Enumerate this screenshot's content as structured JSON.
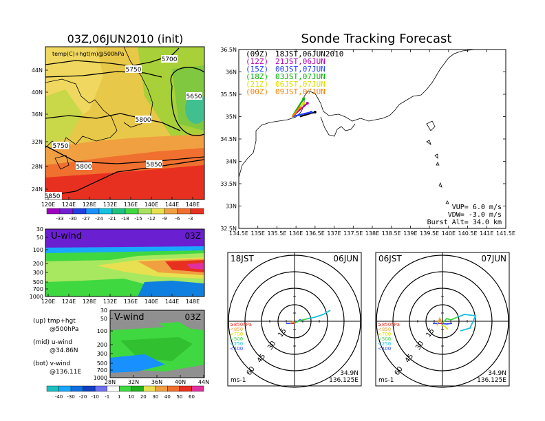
{
  "left_title": "03Z,06JUN2010 (init)",
  "right_title": "Sonde Tracking Forecast",
  "map_top": {
    "label": "temp(C)+hgt(m)@500hPa",
    "lat_ticks": [
      "44N",
      "40N",
      "36N",
      "32N",
      "28N",
      "24N"
    ],
    "lon_ticks": [
      "120E",
      "124E",
      "128E",
      "132E",
      "136E",
      "140E",
      "144E",
      "148E"
    ],
    "contours": [
      "5700",
      "5750",
      "5650",
      "5800",
      "5750",
      "5800",
      "5850",
      "5850"
    ],
    "colorbar": [
      "-33",
      "-30",
      "-27",
      "-24",
      "-21",
      "-18",
      "-15",
      "-12",
      "-9",
      "-6",
      "-3"
    ]
  },
  "u_wind": {
    "label": "U-wind",
    "time": "03Z",
    "p_ticks": [
      "30",
      "50",
      "100",
      "200",
      "300",
      "500",
      "700",
      "1000"
    ],
    "lon_ticks": [
      "120E",
      "124E",
      "128E",
      "132E",
      "136E",
      "140E",
      "144E",
      "148E"
    ]
  },
  "v_wind": {
    "label": "V-wind",
    "time": "03Z",
    "p_ticks": [
      "30",
      "50",
      "100",
      "200",
      "300",
      "500",
      "700",
      "1000"
    ],
    "lat_ticks": [
      "28N",
      "32N",
      "36N",
      "40N",
      "44N"
    ],
    "colorbar": [
      "-40",
      "-30",
      "-20",
      "-10",
      "-1",
      "1",
      "10",
      "20",
      "30",
      "40",
      "50",
      "60"
    ]
  },
  "legend_notes": [
    {
      "top": "(up) tmp+hgt",
      "bottom": "@500hPa"
    },
    {
      "top": "(mid) u-wind",
      "bottom": "@34.86N"
    },
    {
      "top": "(bot) v-wind",
      "bottom": "@136.11E"
    }
  ],
  "track_map": {
    "lat_ticks": [
      "36.5N",
      "36N",
      "35.5N",
      "35N",
      "34.5N",
      "34N",
      "33.5N",
      "33N",
      "32.5N"
    ],
    "lon_ticks": [
      "134.5E",
      "135E",
      "135.5E",
      "136E",
      "136.5E",
      "137E",
      "137.5E",
      "138E",
      "138.5E",
      "139E",
      "139.5E",
      "140E",
      "140.5E",
      "141E",
      "141.5E"
    ],
    "legend": [
      {
        "key": "(09Z)",
        "text": "18JST,06JUN2010",
        "color": "#000000"
      },
      {
        "key": "(12Z)",
        "text": "21JST,06JUN",
        "color": "#b000b0"
      },
      {
        "key": "(15Z)",
        "text": "00JST,07JUN",
        "color": "#2040ff"
      },
      {
        "key": "(18Z)",
        "text": "03JST,07JUN",
        "color": "#00b000"
      },
      {
        "key": "(21Z)",
        "text": "06JST,07JUN",
        "color": "#e0e000"
      },
      {
        "key": "(00Z)",
        "text": "09JST,07JUN",
        "color": "#ff8000"
      }
    ],
    "vup": "VUP= 6.0 m/s",
    "vdw": "VDW= -3.0 m/s",
    "burst": "Burst Alt= 34.0 km"
  },
  "hodo_left": {
    "time": "18JST",
    "date": "06JUN",
    "rings": [
      "15",
      "30",
      "45",
      "60"
    ],
    "levels": [
      "≥850hPa",
      "<850",
      "<700",
      "<500",
      "<250",
      "<100"
    ],
    "unit": "ms-1",
    "lat": "34.9N",
    "lon": "136.125E"
  },
  "hodo_right": {
    "time": "06JST",
    "date": "07JUN",
    "rings": [
      "15",
      "30",
      "45",
      "60"
    ],
    "levels": [
      "≥850hPa",
      "<850",
      "<700",
      "<500",
      "<250",
      "<100"
    ],
    "unit": "ms-1",
    "lat": "34.9N",
    "lon": "136.125E"
  },
  "chart_data": [
    {
      "type": "heatmap",
      "title": "03Z,06JUN2010 (init)",
      "variable": "temp(C)+hgt(m)@500hPa",
      "x_ticks": [
        "120E",
        "124E",
        "128E",
        "132E",
        "136E",
        "140E",
        "144E",
        "148E"
      ],
      "y_ticks": [
        "24N",
        "28N",
        "32N",
        "36N",
        "40N",
        "44N"
      ],
      "color_levels": [
        -33,
        -30,
        -27,
        -24,
        -21,
        -18,
        -15,
        -12,
        -9,
        -6,
        -3
      ],
      "contour_labels": [
        5650,
        5700,
        5750,
        5800,
        5850
      ]
    },
    {
      "type": "heatmap",
      "title": "U-wind",
      "x_ticks": [
        "120E",
        "124E",
        "128E",
        "132E",
        "136E",
        "140E",
        "144E",
        "148E"
      ],
      "y_ticks": [
        30,
        50,
        100,
        200,
        300,
        500,
        700,
        1000
      ]
    },
    {
      "type": "heatmap",
      "title": "V-wind",
      "x_ticks": [
        "28N",
        "32N",
        "36N",
        "40N",
        "44N"
      ],
      "y_ticks": [
        30,
        50,
        100,
        200,
        300,
        500,
        700,
        1000
      ],
      "color_levels": [
        -40,
        -30,
        -20,
        -10,
        -1,
        1,
        10,
        20,
        30,
        40,
        50,
        60
      ]
    },
    {
      "type": "line",
      "title": "Sonde Tracking Forecast",
      "xlim": [
        134.5,
        141.5
      ],
      "ylim": [
        32.5,
        36.5
      ],
      "series": [
        {
          "name": "(09Z) 18JST,06JUN2010",
          "x": [
            136.1,
            136.5
          ],
          "y": [
            35.0,
            35.1
          ]
        },
        {
          "name": "(12Z) 21JST,06JUN",
          "x": [
            135.9,
            136.3
          ],
          "y": [
            35.0,
            35.3
          ]
        },
        {
          "name": "(15Z) 00JST,07JUN",
          "x": [
            135.9,
            136.4
          ],
          "y": [
            35.0,
            35.1
          ]
        },
        {
          "name": "(18Z) 03JST,07JUN",
          "x": [
            135.9,
            136.2
          ],
          "y": [
            35.0,
            35.4
          ]
        },
        {
          "name": "(21Z) 06JST,07JUN",
          "x": [
            135.9,
            136.2
          ],
          "y": [
            35.0,
            35.3
          ]
        },
        {
          "name": "(00Z) 09JST,07JUN",
          "x": [
            135.9,
            136.1
          ],
          "y": [
            35.0,
            35.2
          ]
        }
      ]
    }
  ]
}
